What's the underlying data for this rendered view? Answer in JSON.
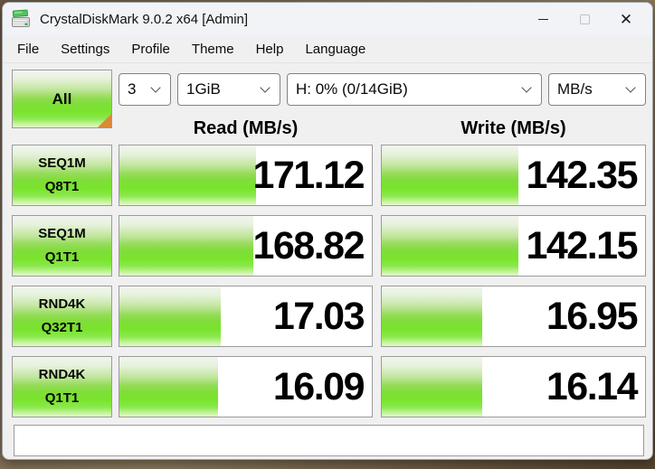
{
  "window": {
    "title": "CrystalDiskMark 9.0.2 x64 [Admin]",
    "controls": {
      "minimize": "minimize",
      "maximize": "maximize",
      "close": "✕"
    }
  },
  "menu": {
    "items": [
      "File",
      "Settings",
      "Profile",
      "Theme",
      "Help",
      "Language"
    ]
  },
  "toolbar": {
    "all_label": "All",
    "test_count": "3",
    "test_size": "1GiB",
    "target_drive": "H: 0% (0/14GiB)",
    "unit": "MB/s"
  },
  "headers": {
    "read": "Read (MB/s)",
    "write": "Write (MB/s)"
  },
  "results": {
    "rows": [
      {
        "label_line1": "SEQ1M",
        "label_line2": "Q8T1",
        "read": "171.12",
        "write": "142.35",
        "read_fill_pct": 54,
        "write_fill_pct": 52
      },
      {
        "label_line1": "SEQ1M",
        "label_line2": "Q1T1",
        "read": "168.82",
        "write": "142.15",
        "read_fill_pct": 53,
        "write_fill_pct": 52
      },
      {
        "label_line1": "RND4K",
        "label_line2": "Q32T1",
        "read": "17.03",
        "write": "16.95",
        "read_fill_pct": 40,
        "write_fill_pct": 38
      },
      {
        "label_line1": "RND4K",
        "label_line2": "Q1T1",
        "read": "16.09",
        "write": "16.14",
        "read_fill_pct": 39,
        "write_fill_pct": 38
      }
    ]
  },
  "comment_bar": {
    "value": "",
    "placeholder": ""
  },
  "colors": {
    "bar_green_bright": "#79e42c",
    "bar_green_mid": "#93dc57",
    "all_corner_orange": "#d98a3a",
    "titlebar_bg": "#f2f3f7",
    "client_bg": "#f0f0f0",
    "cell_border": "#9b9b9b"
  }
}
